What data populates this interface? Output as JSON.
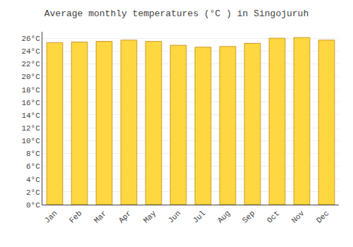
{
  "chart_data": {
    "type": "bar",
    "title": "Average monthly temperatures (°C ) in Singojuruh",
    "categories": [
      "Jan",
      "Feb",
      "Mar",
      "Apr",
      "May",
      "Jun",
      "Jul",
      "Aug",
      "Sep",
      "Oct",
      "Nov",
      "Dec"
    ],
    "values": [
      25.3,
      25.4,
      25.5,
      25.7,
      25.5,
      24.9,
      24.6,
      24.7,
      25.2,
      26.0,
      26.1,
      25.7
    ],
    "color": "#FFD740",
    "ylim": [
      0,
      27
    ],
    "yticks": [
      {
        "value": 0,
        "label": "0°C"
      },
      {
        "value": 2,
        "label": "2°C"
      },
      {
        "value": 4,
        "label": "4°C"
      },
      {
        "value": 6,
        "label": "6°C"
      },
      {
        "value": 8,
        "label": "8°C"
      },
      {
        "value": 10,
        "label": "10°C"
      },
      {
        "value": 12,
        "label": "12°C"
      },
      {
        "value": 14,
        "label": "14°C"
      },
      {
        "value": 16,
        "label": "16°C"
      },
      {
        "value": 18,
        "label": "18°C"
      },
      {
        "value": 20,
        "label": "20°C"
      },
      {
        "value": 22,
        "label": "22°C"
      },
      {
        "value": 24,
        "label": "24°C"
      },
      {
        "value": 26,
        "label": "26°C"
      }
    ],
    "grid": true
  }
}
